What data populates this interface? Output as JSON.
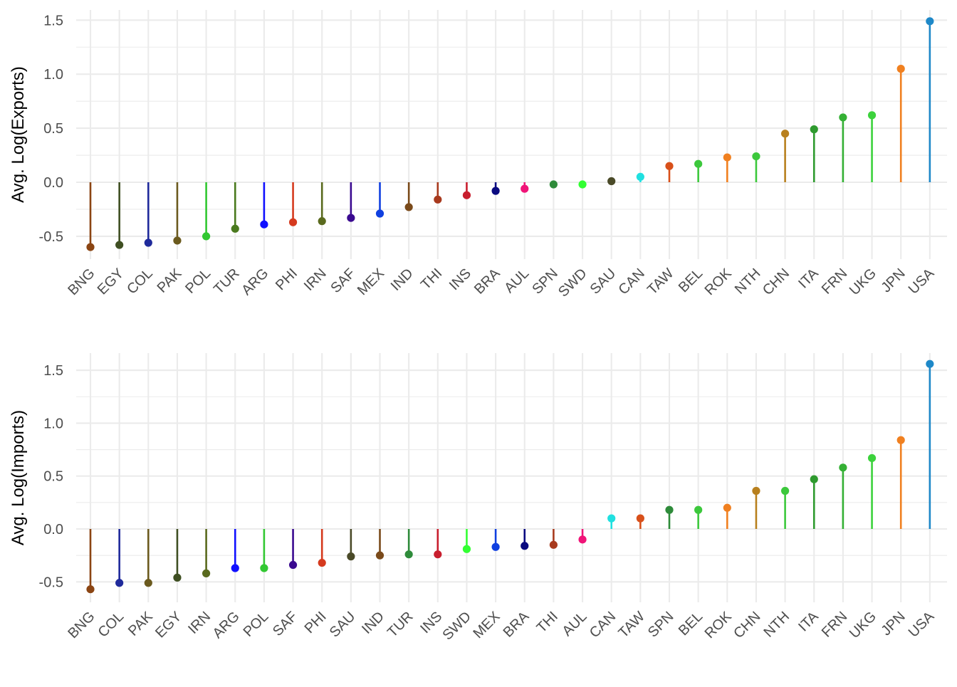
{
  "chart_data": [
    {
      "type": "lollipop",
      "title": "",
      "xlabel": "",
      "ylabel": "Avg. Log(Exports)",
      "ylim": [
        -0.65,
        1.6
      ],
      "yticks": [
        -0.5,
        0.0,
        0.5,
        1.0,
        1.5
      ],
      "ytick_labels": [
        "-0.5",
        "0.0",
        "0.5",
        "1.0",
        "1.5"
      ],
      "grid": true,
      "legend": "none",
      "categories": [
        "BNG",
        "EGY",
        "COL",
        "PAK",
        "POL",
        "TUR",
        "ARG",
        "PHI",
        "IRN",
        "SAF",
        "MEX",
        "IND",
        "THI",
        "INS",
        "BRA",
        "AUL",
        "SPN",
        "SWD",
        "SAU",
        "CAN",
        "TAW",
        "BEL",
        "ROK",
        "NTH",
        "CHN",
        "ITA",
        "FRN",
        "UKG",
        "JPN",
        "USA"
      ],
      "values": [
        -0.6,
        -0.58,
        -0.56,
        -0.54,
        -0.5,
        -0.43,
        -0.39,
        -0.37,
        -0.36,
        -0.33,
        -0.29,
        -0.23,
        -0.16,
        -0.12,
        -0.08,
        -0.06,
        -0.02,
        -0.02,
        0.01,
        0.05,
        0.15,
        0.17,
        0.23,
        0.24,
        0.45,
        0.49,
        0.6,
        0.62,
        1.05,
        1.49
      ],
      "colors": [
        "#8B4513",
        "#3F4F22",
        "#1F2A9B",
        "#6B5A1E",
        "#32C832",
        "#4A7A1E",
        "#1010FF",
        "#D53A1E",
        "#5A6A1E",
        "#3A0A90",
        "#1040E0",
        "#7A4A1A",
        "#A83A1E",
        "#C81E2E",
        "#0A0A80",
        "#F01478",
        "#2E8B3A",
        "#32FF32",
        "#4A4A28",
        "#20E0E0",
        "#D8501A",
        "#3CC83C",
        "#F08020",
        "#3CC83C",
        "#B8801E",
        "#2E9A2E",
        "#34B034",
        "#3CD23C",
        "#F08020",
        "#1E88C8"
      ]
    },
    {
      "type": "lollipop",
      "title": "",
      "xlabel": "",
      "ylabel": "Avg. Log(Imports)",
      "ylim": [
        -0.63,
        1.66
      ],
      "yticks": [
        -0.5,
        0.0,
        0.5,
        1.0,
        1.5
      ],
      "ytick_labels": [
        "-0.5",
        "0.0",
        "0.5",
        "1.0",
        "1.5"
      ],
      "grid": true,
      "legend": "none",
      "categories": [
        "BNG",
        "COL",
        "PAK",
        "EGY",
        "IRN",
        "ARG",
        "POL",
        "SAF",
        "PHI",
        "SAU",
        "IND",
        "TUR",
        "INS",
        "SWD",
        "MEX",
        "BRA",
        "THI",
        "AUL",
        "CAN",
        "TAW",
        "SPN",
        "BEL",
        "ROK",
        "CHN",
        "NTH",
        "ITA",
        "FRN",
        "UKG",
        "JPN",
        "USA"
      ],
      "values": [
        -0.57,
        -0.51,
        -0.51,
        -0.46,
        -0.42,
        -0.37,
        -0.37,
        -0.34,
        -0.32,
        -0.26,
        -0.25,
        -0.24,
        -0.24,
        -0.19,
        -0.17,
        -0.16,
        -0.15,
        -0.1,
        0.1,
        0.1,
        0.18,
        0.18,
        0.2,
        0.36,
        0.36,
        0.47,
        0.58,
        0.67,
        0.84,
        1.56
      ],
      "colors": [
        "#8B4513",
        "#1F2A9B",
        "#6B5A1E",
        "#3F4F22",
        "#5A6A1E",
        "#1010FF",
        "#32C832",
        "#3A0A90",
        "#D53A1E",
        "#4A4A28",
        "#7A4A1A",
        "#2E8B3A",
        "#C81E2E",
        "#32FF32",
        "#1040E0",
        "#0A0A80",
        "#A83A1E",
        "#F01478",
        "#20E0E0",
        "#D8501A",
        "#2E8B3A",
        "#3CC83C",
        "#F08020",
        "#B8801E",
        "#3CC83C",
        "#2E9A2E",
        "#34B034",
        "#3CD23C",
        "#F08020",
        "#1E88C8"
      ]
    }
  ]
}
